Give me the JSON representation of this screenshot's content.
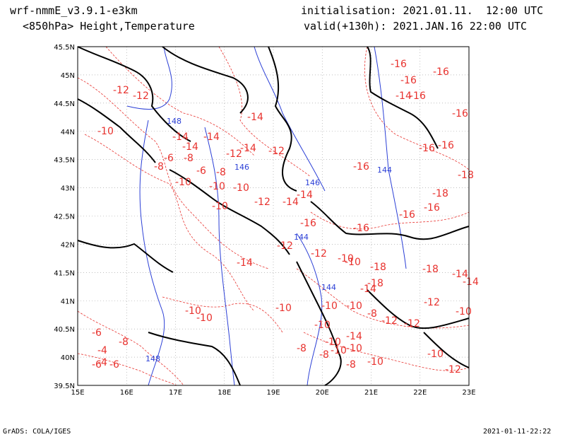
{
  "header": {
    "model": "wrf-nmmE_v3.9.1-e3km",
    "field": "<850hPa> Height,Temperature",
    "init": "initialisation: 2021.01.11.  12:00 UTC",
    "valid": "valid(+130h): 2021.JAN.16 22:00 UTC"
  },
  "footer": {
    "credit": "GrADS: COLA/IGES",
    "timestamp": "2021-01-11-22:22"
  },
  "axes": {
    "lat_labels": [
      "45.5N",
      "45N",
      "44.5N",
      "44N",
      "43.5N",
      "43N",
      "42.5N",
      "42N",
      "41.5N",
      "41N",
      "40.5N",
      "40N",
      "39.5N"
    ],
    "lon_labels": [
      "15E",
      "16E",
      "17E",
      "18E",
      "19E",
      "20E",
      "21E",
      "22E",
      "23E"
    ]
  },
  "colors": {
    "coast": "#000000",
    "temperature": "#e8322e",
    "height": "#2b3fd6",
    "grid": "#999999"
  },
  "temperature_labels": [
    "-12",
    "-12",
    "-10",
    "-14",
    "-14",
    "-14",
    "-14",
    "-14",
    "-16",
    "-16",
    "-16",
    "-16",
    "-16",
    "-16",
    "-16",
    "-18",
    "-18",
    "-14",
    "-16",
    "-6",
    "-8",
    "-6",
    "-8",
    "-10",
    "-8",
    "-10",
    "-12",
    "-12",
    "-10",
    "-10",
    "-12",
    "-14",
    "-14",
    "-16",
    "-16",
    "-16",
    "-16",
    "-18",
    "-18",
    "-18",
    "-12",
    "-14",
    "-10",
    "-10",
    "-10",
    "-10",
    "-10",
    "-10",
    "-8",
    "-6",
    "-4",
    "-4",
    "-6",
    "-6",
    "-8",
    "-10",
    "-10",
    "-12",
    "-12",
    "-14",
    "-14",
    "-12",
    "-10",
    "-10",
    "-12",
    "-12",
    "-8",
    "-8",
    "-10",
    "-10",
    "-8",
    "-10",
    "-10",
    "-14",
    "-14"
  ],
  "height_labels": [
    "148",
    "146",
    "146",
    "144",
    "144",
    "144",
    "148"
  ]
}
